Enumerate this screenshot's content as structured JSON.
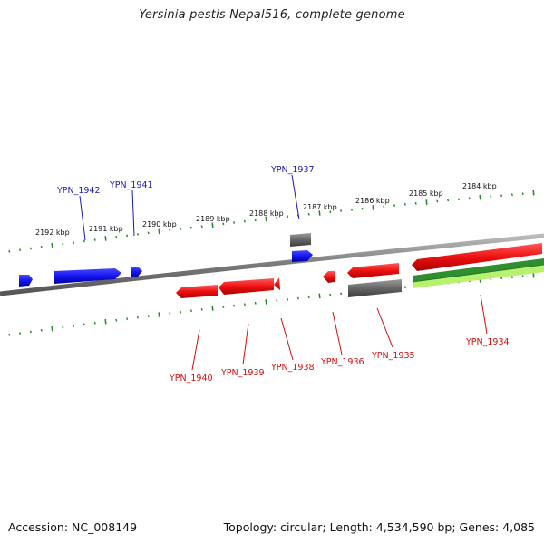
{
  "title": "Yersinia pestis Nepal516, complete genome",
  "footer": {
    "accession": "Accession: NC_008149",
    "topology": "Topology: circular; Length: 4,534,590 bp; Genes: 4,085"
  },
  "colors": {
    "forward_gene": "#1a1aee",
    "reverse_gene": "#ee1111",
    "other_feature": "#666666",
    "backbone": "#888888",
    "ticks": "#2a8a2a",
    "forward_label": "#1a1aaa",
    "reverse_label": "#cc1111",
    "track_dark_green": "#2f8f2f",
    "track_light_green": "#b8f070"
  },
  "scale_labels": [
    "2192 kbp",
    "2191 kbp",
    "2190 kbp",
    "2189 kbp",
    "2188 kbp",
    "2187 kbp",
    "2186 kbp",
    "2185 kbp",
    "2184 kbp"
  ],
  "forward_gene_labels": [
    "YPN_1942",
    "YPN_1941",
    "YPN_1937"
  ],
  "reverse_gene_labels": [
    "YPN_1940",
    "YPN_1939",
    "YPN_1938",
    "YPN_1936",
    "YPN_1935",
    "YPN_1934"
  ]
}
